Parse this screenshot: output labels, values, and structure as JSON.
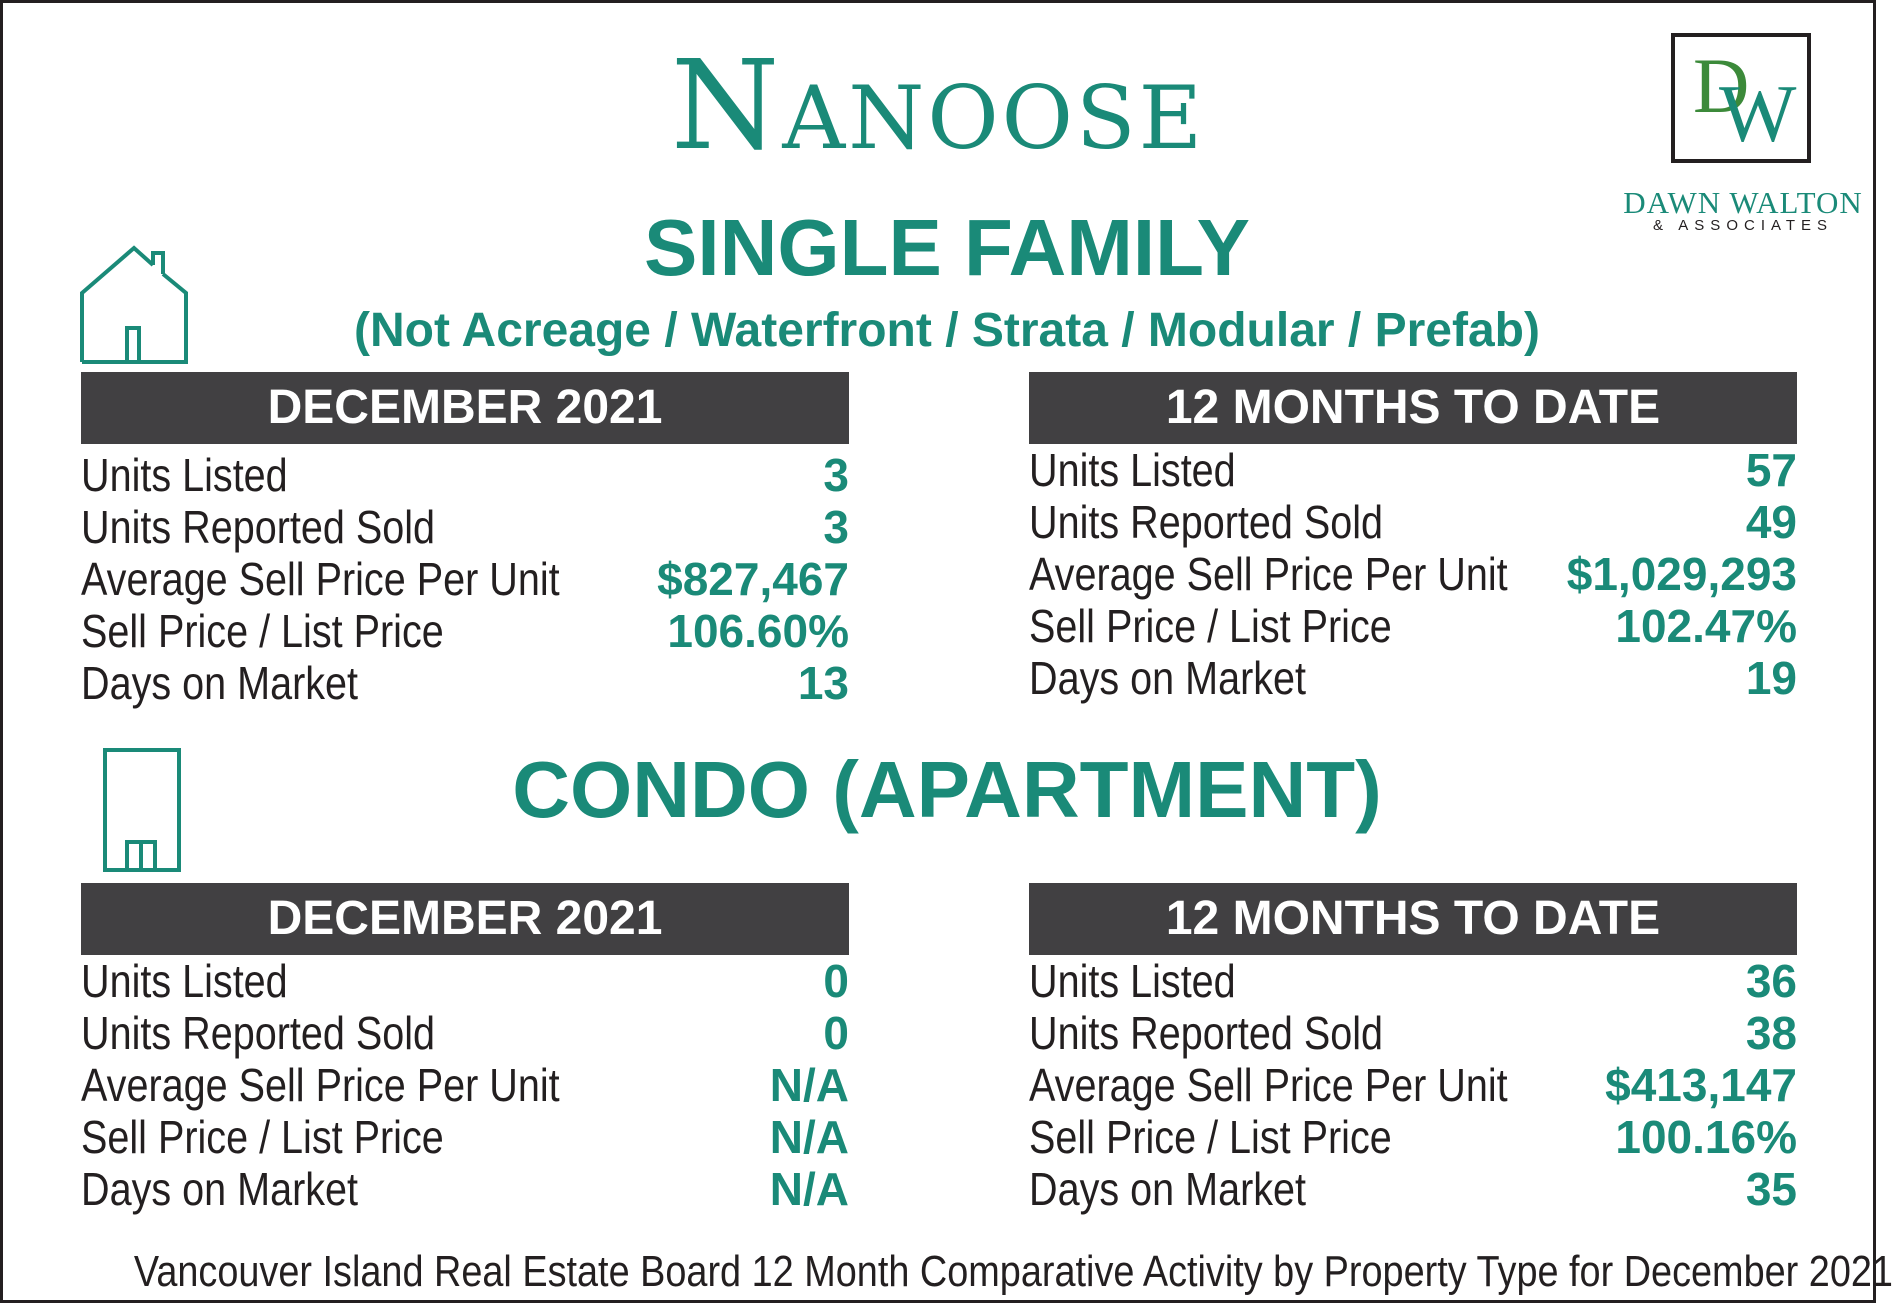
{
  "title": "Nanoose",
  "logo": {
    "letters": {
      "d": "D",
      "w": "W"
    },
    "name": "DAWN WALTON",
    "tagline": "& ASSOCIATES"
  },
  "single_family": {
    "heading": "SINGLE FAMILY",
    "subheading": "(Not Acreage / Waterfront / Strata / Modular / Prefab)",
    "icon": "house-icon",
    "month": {
      "header": "DECEMBER 2021",
      "rows": [
        {
          "label": "Units Listed",
          "value": "3"
        },
        {
          "label": "Units Reported Sold",
          "value": "3"
        },
        {
          "label": "Average Sell Price Per Unit",
          "value": "$827,467"
        },
        {
          "label": "Sell Price / List Price",
          "value": "106.60%"
        },
        {
          "label": "Days on Market",
          "value": "13"
        }
      ]
    },
    "ytd": {
      "header": "12 MONTHS TO DATE",
      "rows": [
        {
          "label": "Units Listed",
          "value": "57"
        },
        {
          "label": "Units Reported Sold",
          "value": "49"
        },
        {
          "label": "Average Sell Price Per Unit",
          "value": "$1,029,293"
        },
        {
          "label": "Sell Price / List Price",
          "value": "102.47%"
        },
        {
          "label": "Days on Market",
          "value": "19"
        }
      ]
    }
  },
  "condo": {
    "heading": "CONDO (APARTMENT)",
    "icon": "building-icon",
    "month": {
      "header": "DECEMBER 2021",
      "rows": [
        {
          "label": "Units Listed",
          "value": "0"
        },
        {
          "label": "Units Reported Sold",
          "value": "0"
        },
        {
          "label": "Average Sell Price Per Unit",
          "value": "N/A"
        },
        {
          "label": "Sell Price / List Price",
          "value": "N/A"
        },
        {
          "label": "Days on Market",
          "value": "N/A"
        }
      ]
    },
    "ytd": {
      "header": "12 MONTHS TO DATE",
      "rows": [
        {
          "label": "Units Listed",
          "value": "36"
        },
        {
          "label": "Units Reported Sold",
          "value": "38"
        },
        {
          "label": "Average Sell Price Per Unit",
          "value": "$413,147"
        },
        {
          "label": "Sell Price / List Price",
          "value": "100.16%"
        },
        {
          "label": "Days on Market",
          "value": "35"
        }
      ]
    }
  },
  "footer": "Vancouver Island Real Estate Board 12 Month Comparative Activity by Property Type for December 2021",
  "colors": {
    "accent": "#1a8a78",
    "header_bg": "#414042",
    "text": "#231f20",
    "logo_green": "#3c8a3a"
  }
}
